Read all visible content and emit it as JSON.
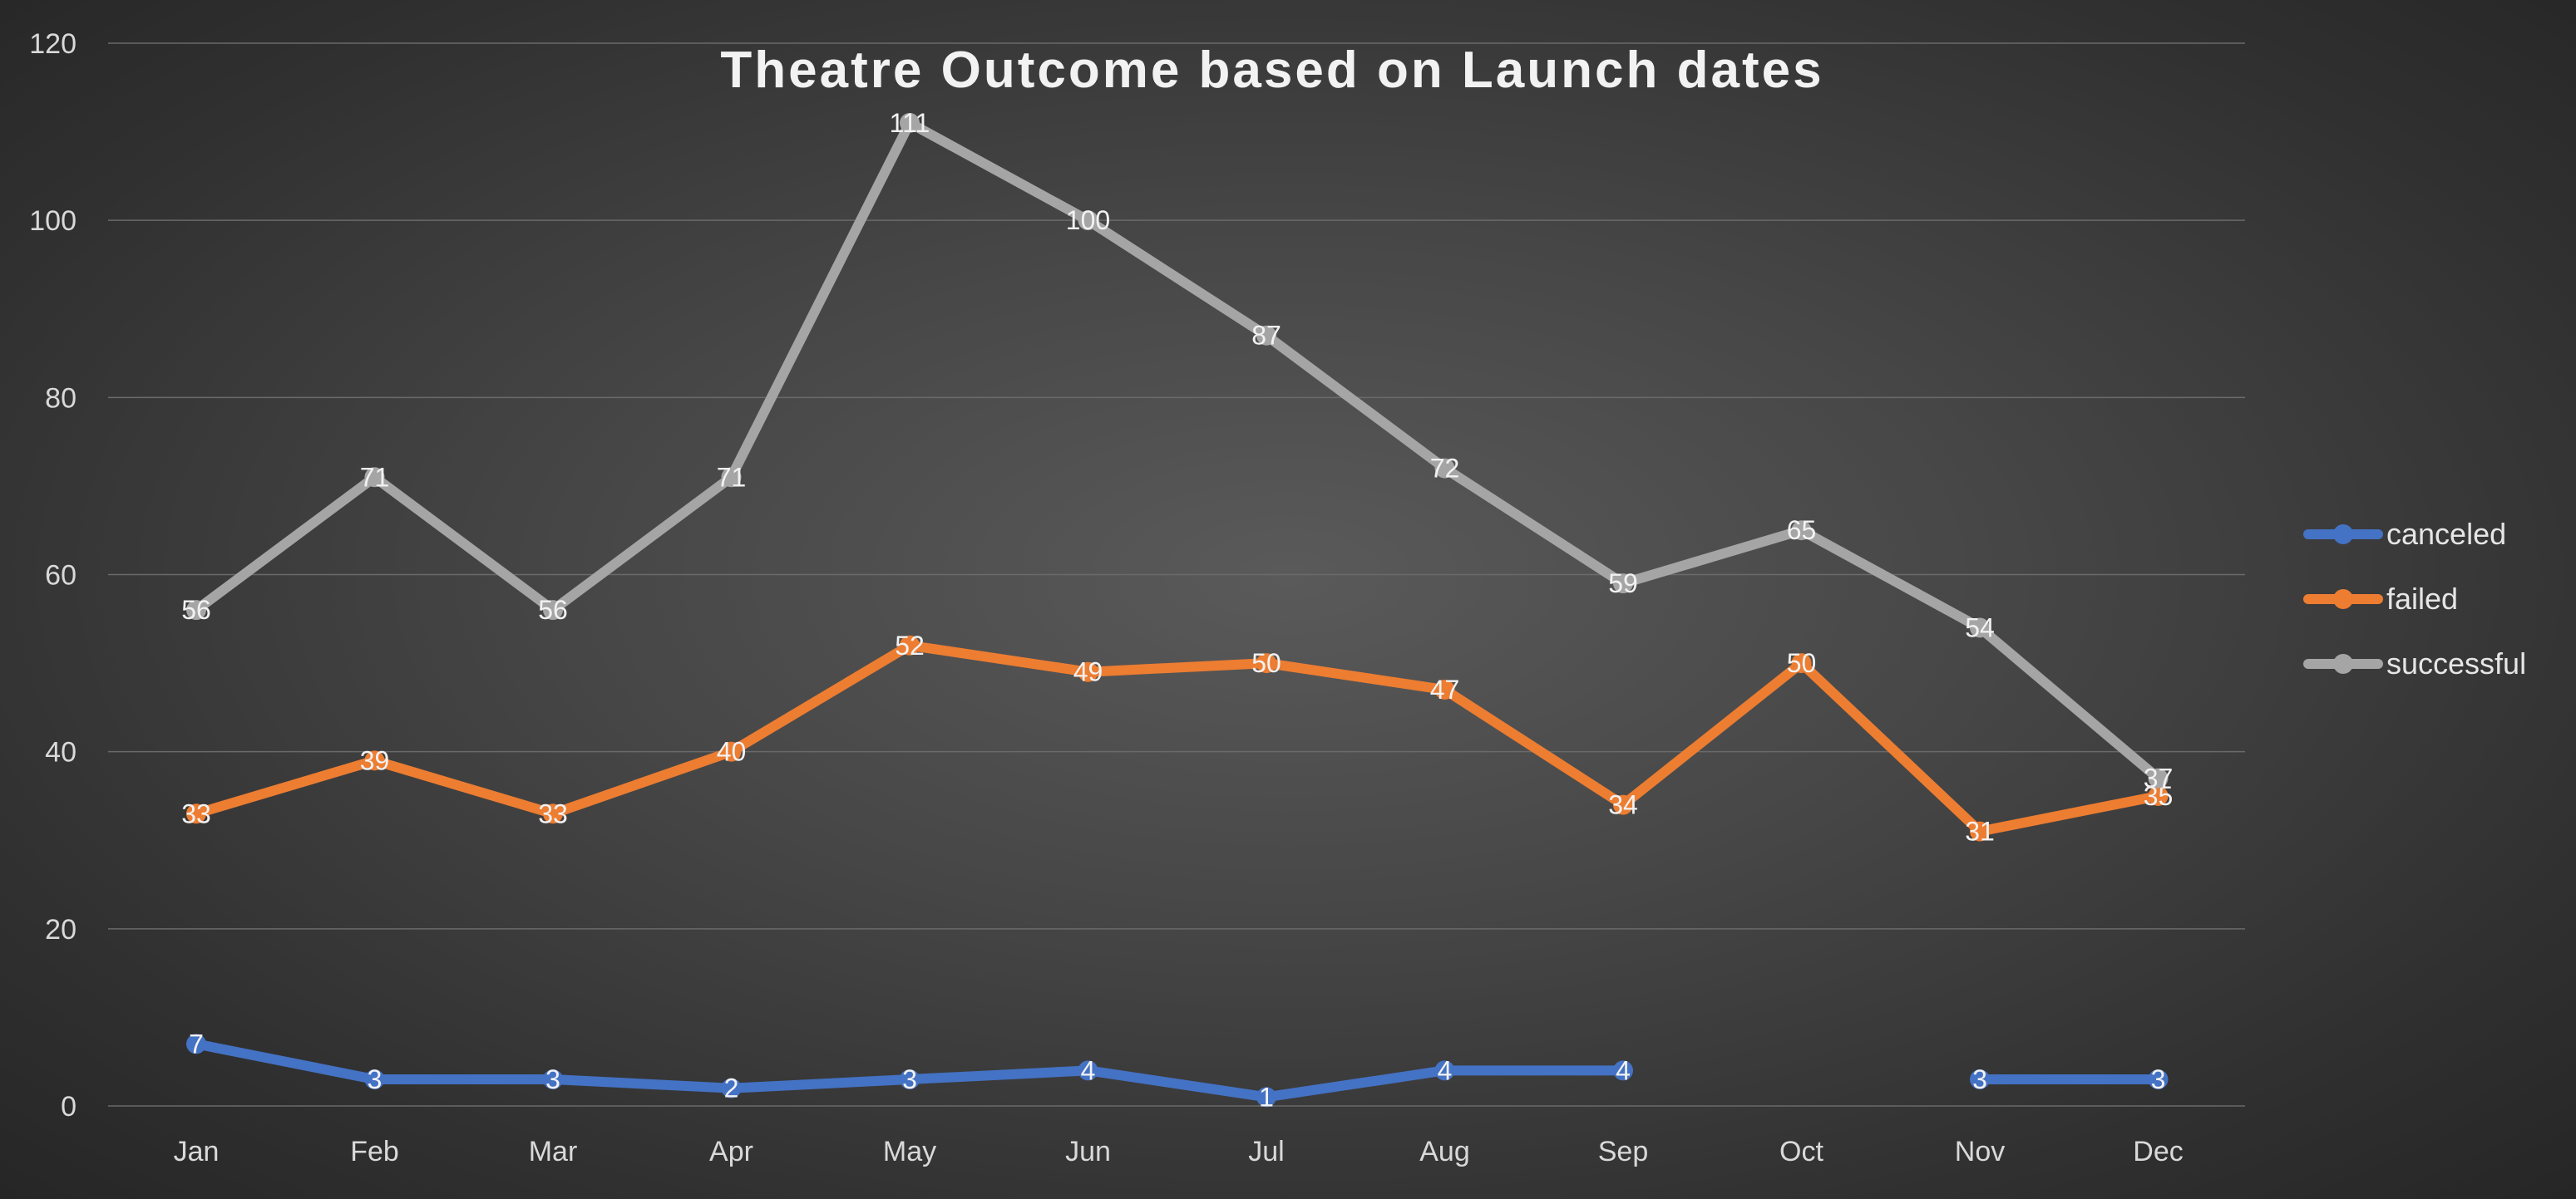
{
  "chart_data": {
    "type": "line",
    "title": "Theatre Outcome based on Launch dates",
    "xlabel": "",
    "ylabel": "",
    "categories": [
      "Jan",
      "Feb",
      "Mar",
      "Apr",
      "May",
      "Jun",
      "Jul",
      "Aug",
      "Sep",
      "Oct",
      "Nov",
      "Dec"
    ],
    "ylim": [
      0,
      120
    ],
    "yticks": [
      0,
      20,
      40,
      60,
      80,
      100,
      120
    ],
    "grid": true,
    "legend_position": "right",
    "series": [
      {
        "name": "canceled",
        "color": "#4472c4",
        "values": [
          7,
          3,
          3,
          2,
          3,
          4,
          1,
          4,
          4,
          null,
          3,
          3
        ]
      },
      {
        "name": "failed",
        "color": "#ed7d31",
        "values": [
          33,
          39,
          33,
          40,
          52,
          49,
          50,
          47,
          34,
          50,
          31,
          35
        ]
      },
      {
        "name": "successful",
        "color": "#a5a5a5",
        "values": [
          56,
          71,
          56,
          71,
          111,
          100,
          87,
          72,
          59,
          65,
          54,
          37
        ]
      }
    ]
  }
}
